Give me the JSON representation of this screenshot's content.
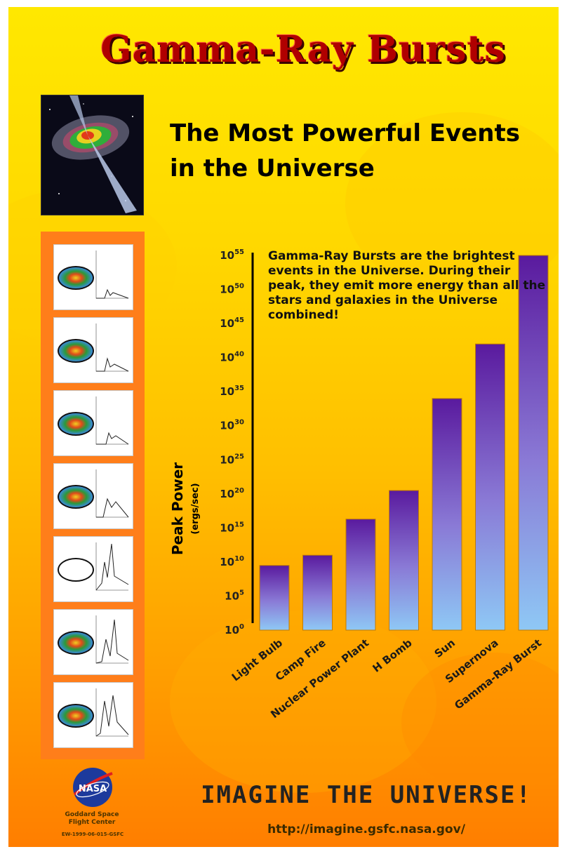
{
  "poster": {
    "title": "Gamma-Ray Bursts",
    "subtitle_line1": "The Most Powerful Events",
    "subtitle_line2": "in the Universe",
    "annotation": "Gamma-Ray Bursts are the brightest events in the Universe. During their peak, they emit more energy than all the stars and galaxies in the Universe combined!",
    "footer_slogan": "IMAGINE THE UNIVERSE!",
    "url": "http://imagine.gsfc.nasa.gov/",
    "nasa_logo_text": "NASA",
    "institution_line1": "Goddard Space",
    "institution_line2": "Flight Center",
    "doc_code": "EW-1999-06-015-GSFC"
  },
  "colors": {
    "title_red": "#b00000",
    "bar_top": "#5a1a9e",
    "bar_bottom": "#8ec8f5",
    "background_top": "#ffe800",
    "background_bottom": "#ff7e00"
  },
  "chart_data": {
    "type": "bar",
    "title": "",
    "xlabel": "",
    "ylabel": "Peak Power",
    "ylabel_unit": "(ergs/sec)",
    "yscale": "log",
    "ylim_exponent": [
      0,
      55
    ],
    "yticks": [
      "10^0",
      "10^5",
      "10^10",
      "10^15",
      "10^20",
      "10^25",
      "10^30",
      "10^35",
      "10^40",
      "10^45",
      "10^50",
      "10^55"
    ],
    "categories": [
      "Light Bulb",
      "Camp Fire",
      "Nuclear Power Plant",
      "H Bomb",
      "Sun",
      "Supernova",
      "Gamma-Ray Burst"
    ],
    "series": [
      {
        "log10_values": [
          9.5,
          11.0,
          16.3,
          20.5,
          34.0,
          42.0,
          55.0
        ]
      }
    ],
    "grid": false,
    "legend": "none"
  }
}
